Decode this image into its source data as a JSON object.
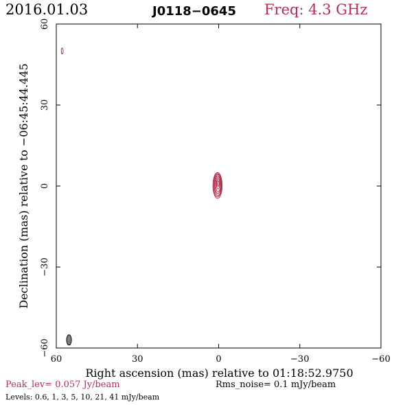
{
  "header": {
    "date": "2016.01.03",
    "source": "J0118−0645",
    "frequency": "Freq: 4.3 GHz"
  },
  "footer": {
    "peak": "Peak_lev=  0.057 Jy/beam",
    "rms": "Rms_noise=  0.1 mJy/beam",
    "levels": "Levels: 0.6,   1,   3,   5,  10,  21,  41 mJy/beam"
  },
  "colors": {
    "contour": "#b03050",
    "beam_fill": "#808080",
    "axis": "#000000"
  },
  "chart_data": {
    "type": "contour",
    "xlabel": "Right ascension (mas) relative to 01:18:52.9750",
    "ylabel": "Declination (mas) relative to −06:45:44.445",
    "xlim": [
      60,
      -60
    ],
    "ylim": [
      -60,
      60
    ],
    "x_ticks": [
      60,
      30,
      0,
      -30,
      -60
    ],
    "x_tick_labels": [
      "60",
      "30",
      "0",
      "−30",
      "−60"
    ],
    "y_ticks": [
      -60,
      -30,
      0,
      30,
      60
    ],
    "y_tick_labels": [
      "−60",
      "−30",
      "0",
      "30",
      "60"
    ],
    "contour_levels_mJy": [
      0.6,
      1,
      3,
      5,
      10,
      21,
      41
    ],
    "peak_Jy_per_beam": 0.057,
    "rms_mJy_per_beam": 0.1,
    "contours": [
      {
        "ra": 0.4,
        "dec": 0.2,
        "a": 1.7,
        "b": 4.8
      },
      {
        "ra": 0.4,
        "dec": 0.3,
        "a": 1.5,
        "b": 4.3
      },
      {
        "ra": 0.3,
        "dec": 0.4,
        "a": 1.3,
        "b": 3.9
      },
      {
        "ra": 0.3,
        "dec": 0.5,
        "a": 1.1,
        "b": 3.3
      },
      {
        "ra": 0.2,
        "dec": 0.6,
        "a": 0.9,
        "b": 2.7
      },
      {
        "ra": 0.2,
        "dec": 0.8,
        "a": 0.6,
        "b": 1.9
      },
      {
        "ra": 0.2,
        "dec": 0.9,
        "a": 0.35,
        "b": 1.0
      },
      {
        "ra": 57.8,
        "dec": 50.0,
        "a": 0.35,
        "b": 1.1
      }
    ],
    "beam": {
      "ra": 55.3,
      "dec": -57.0,
      "a": 0.9,
      "b": 1.9
    }
  }
}
